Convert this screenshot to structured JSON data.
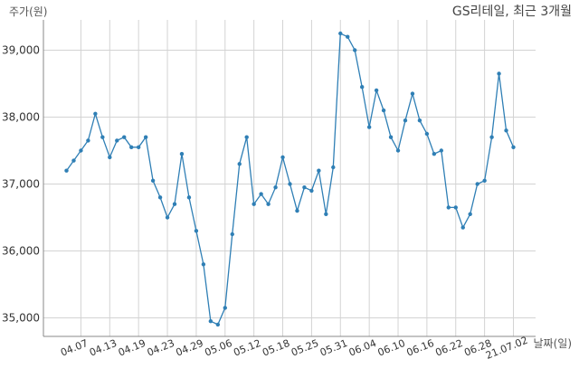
{
  "chart_data": {
    "type": "line",
    "title": "GS리테일, 최근 3개월",
    "ylabel": "주가(원)",
    "xlabel": "날짜(일)",
    "ylim": [
      34700,
      39500
    ],
    "yticks": [
      35000,
      36000,
      37000,
      38000,
      39000
    ],
    "ytick_labels": [
      "35,000",
      "36,000",
      "37,000",
      "38,000",
      "39,000"
    ],
    "x_tick_labels": [
      "04.07",
      "04.13",
      "04.19",
      "04.23",
      "04.29",
      "05.06",
      "05.12",
      "05.18",
      "05.25",
      "05.31",
      "06.04",
      "06.10",
      "06.16",
      "06.22",
      "06.28",
      "21.07.02"
    ],
    "grid": true,
    "line_color": "#2f7fb5",
    "series": [
      {
        "values": [
          37200,
          37350,
          37500,
          37650,
          38050,
          37700,
          37400,
          37650,
          37700,
          37550,
          37550,
          37700,
          37050,
          36800,
          36500,
          36700,
          37450,
          36800,
          36300,
          35800,
          34950,
          34900,
          35150,
          36250,
          37300,
          37700,
          36700,
          36850,
          36700,
          36950,
          37400,
          37000,
          36600,
          36950,
          36900,
          37200,
          36550,
          37250,
          39250,
          39200,
          39000,
          38450,
          37850,
          38400,
          38100,
          37700,
          37500,
          37950,
          38350,
          37950,
          37750,
          37450,
          37500,
          36650,
          36650,
          36350,
          36550,
          37000,
          37050,
          37700,
          38650,
          37800,
          37550
        ]
      }
    ]
  }
}
